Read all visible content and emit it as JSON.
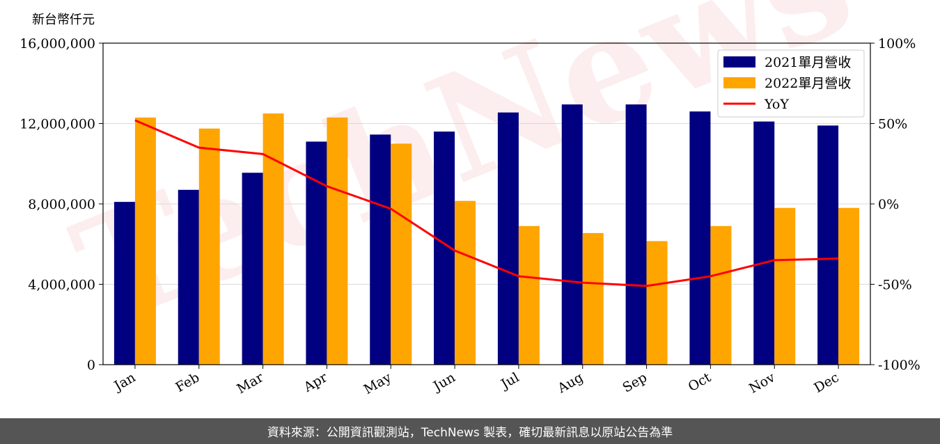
{
  "chart_data": {
    "type": "bar",
    "unit_label": "新台幣仟元",
    "categories": [
      "Jan",
      "Feb",
      "Mar",
      "Apr",
      "May",
      "Jun",
      "Jul",
      "Aug",
      "Sep",
      "Oct",
      "Nov",
      "Dec"
    ],
    "series": [
      {
        "name": "2021單月營收",
        "type": "bar",
        "axis": "left",
        "color": "#000080",
        "values": [
          8100000,
          8700000,
          9550000,
          11100000,
          11450000,
          11600000,
          12550000,
          12950000,
          12950000,
          12600000,
          12100000,
          11900000
        ]
      },
      {
        "name": "2022單月營收",
        "type": "bar",
        "axis": "left",
        "color": "#FFA500",
        "values": [
          12300000,
          11750000,
          12500000,
          12300000,
          11000000,
          8150000,
          6900000,
          6550000,
          6150000,
          6900000,
          7800000,
          7800000
        ]
      },
      {
        "name": "YoY",
        "type": "line",
        "axis": "right",
        "color": "#FF0000",
        "values": [
          52,
          35,
          31,
          11,
          -3,
          -29,
          -45,
          -49,
          -51,
          -45,
          -35,
          -34
        ]
      }
    ],
    "ylim_left": [
      0,
      16000000
    ],
    "yticks_left": [
      "0",
      "4,000,000",
      "8,000,000",
      "12,000,000",
      "16,000,000"
    ],
    "ylim_right": [
      -100,
      100
    ],
    "yticks_right": [
      "-100%",
      "-50%",
      "0%",
      "50%",
      "100%"
    ],
    "grid": "horizontal",
    "legend_position": "top-right",
    "watermark": "TechNews"
  },
  "footer": {
    "text": "資料來源：公開資訊觀測站，TechNews 製表，確切最新訊息以原站公告為準"
  }
}
